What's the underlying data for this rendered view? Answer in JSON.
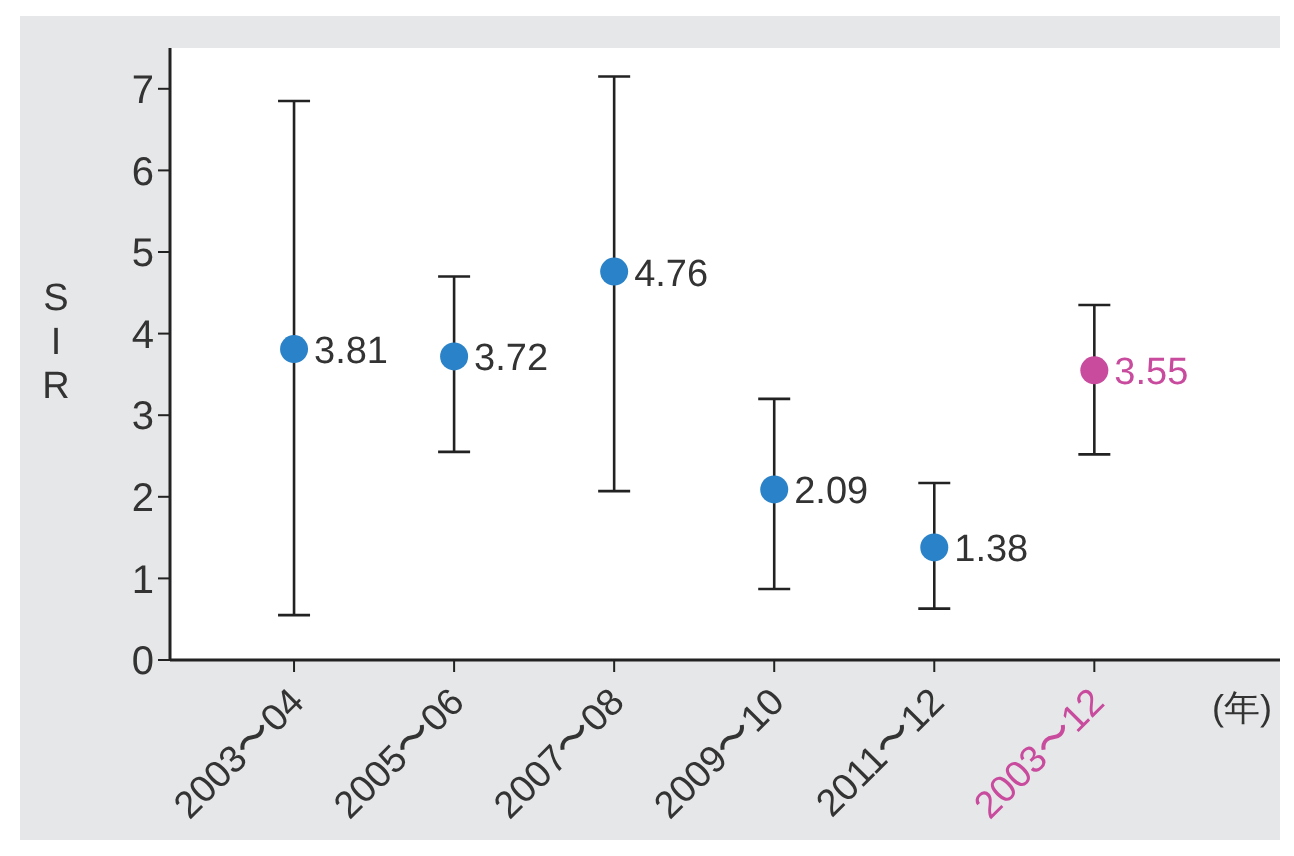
{
  "chart_data": {
    "type": "scatter",
    "xlabel": "(年)",
    "ylabel": "SIR",
    "categories": [
      "2003〜04",
      "2005〜06",
      "2007〜08",
      "2009〜10",
      "2011〜12",
      "2003〜12"
    ],
    "values": [
      3.81,
      3.72,
      4.76,
      2.09,
      1.38,
      3.55
    ],
    "colors": [
      "#2a82c8",
      "#2a82c8",
      "#2a82c8",
      "#2a82c8",
      "#2a82c8",
      "#c84b9e"
    ],
    "errors": [
      [
        0.55,
        6.85
      ],
      [
        2.55,
        4.7
      ],
      [
        2.07,
        7.15
      ],
      [
        0.87,
        3.2
      ],
      [
        0.63,
        2.17
      ],
      [
        2.52,
        4.35
      ]
    ],
    "data_labels": true,
    "ylim": [
      0,
      7.5
    ],
    "yticks": [
      0,
      1,
      2,
      3,
      4,
      5,
      6,
      7
    ],
    "marker": "circle"
  }
}
